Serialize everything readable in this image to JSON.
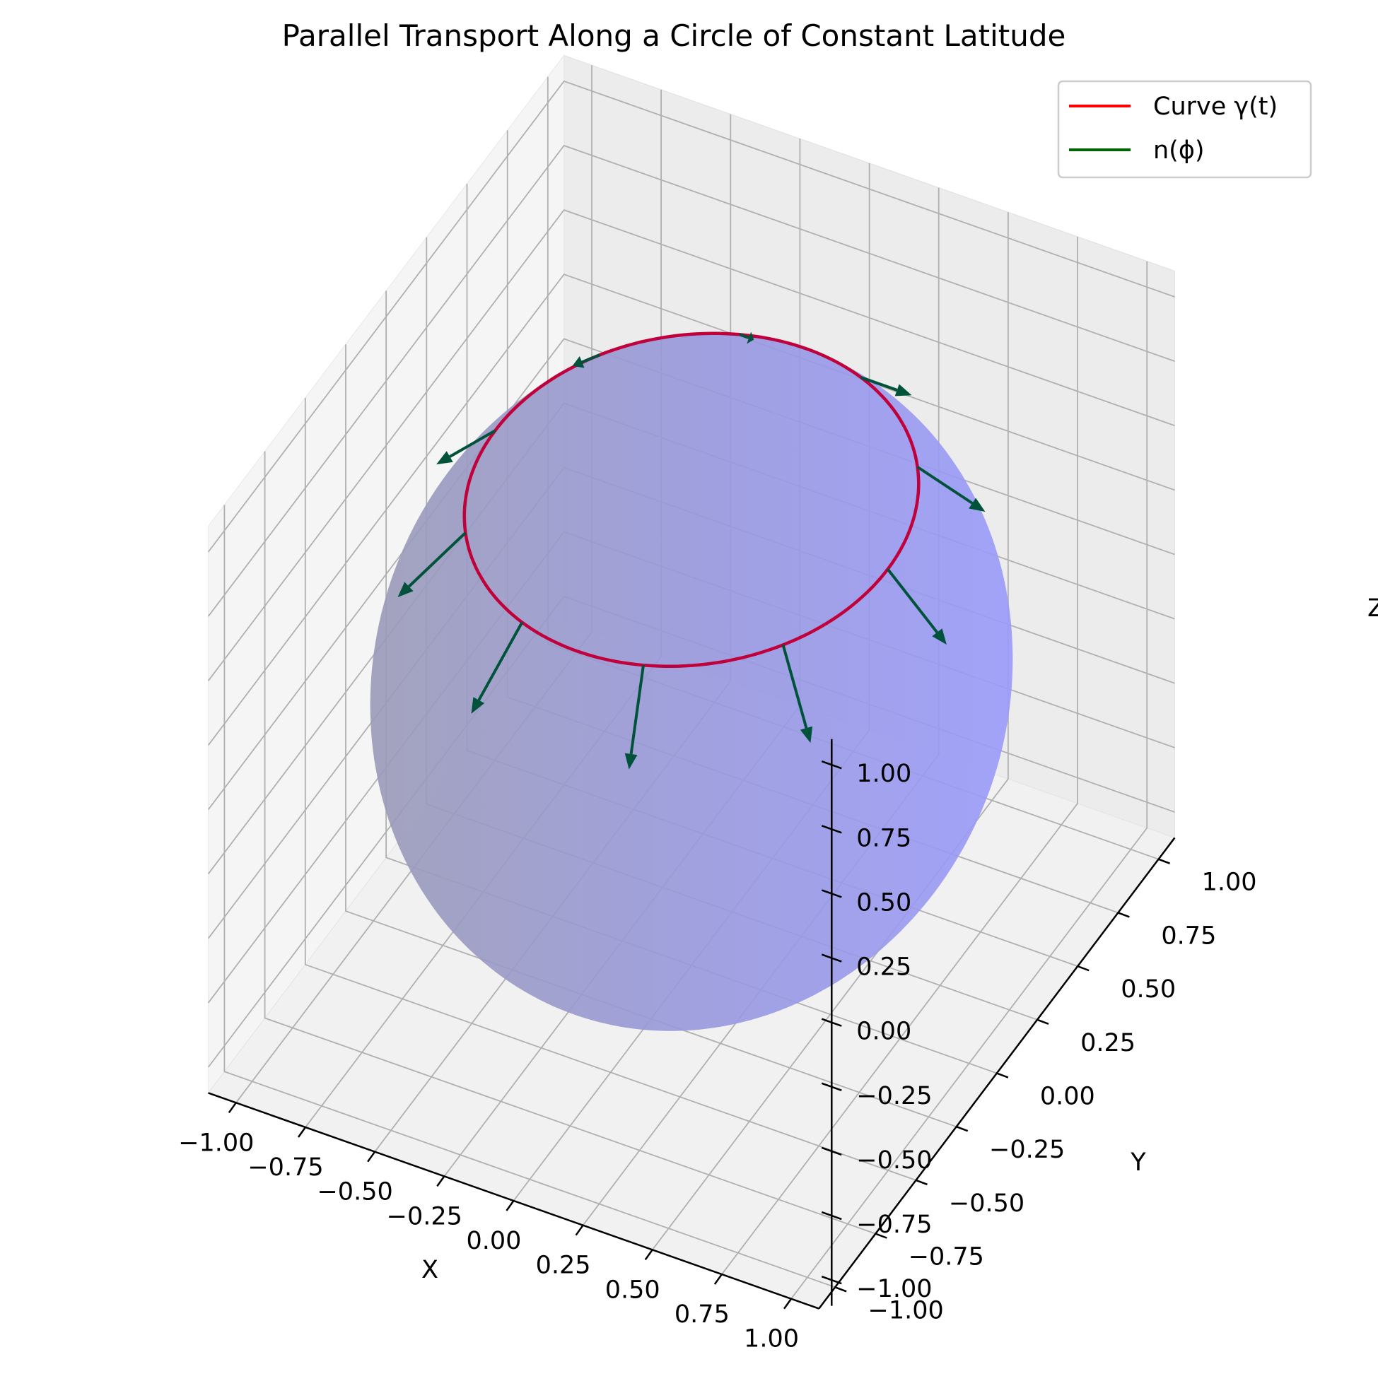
{
  "chart_data": {
    "type": "3d-surface-quiver",
    "title": "Parallel Transport Along a Circle of Constant Latitude",
    "xlabel": "X",
    "ylabel": "Y",
    "zlabel": "Z",
    "xlim": [
      -1.1,
      1.1
    ],
    "ylim": [
      -1.1,
      1.1
    ],
    "zlim": [
      -1.1,
      1.1
    ],
    "xticks": [
      "−1.00",
      "−0.75",
      "−0.50",
      "−0.25",
      "0.00",
      "0.25",
      "0.50",
      "0.75",
      "1.00"
    ],
    "yticks": [
      "−1.00",
      "−0.75",
      "−0.50",
      "−0.25",
      "0.00",
      "0.25",
      "0.50",
      "0.75",
      "1.00"
    ],
    "zticks": [
      "−1.00",
      "−0.75",
      "−0.50",
      "−0.25",
      "0.00",
      "0.25",
      "0.50",
      "0.75",
      "1.00"
    ],
    "grid": true,
    "legend_position": "top-right",
    "view": {
      "elevation_deg": 30,
      "azimuth_deg": -60
    },
    "colors": {
      "sphere": "#8080ff",
      "curve": "#ff0000",
      "arrows": "#006400",
      "pane": "#f2f2f2",
      "grid": "#b0b0b0"
    },
    "sphere": {
      "radius": 1.0,
      "alpha": 0.5
    },
    "series": [
      {
        "name": "Curve γ(t)",
        "kind": "curve",
        "latitude_deg": 45,
        "radius": 1.0
      },
      {
        "name": "n(ϕ)",
        "kind": "quiver",
        "count": 10,
        "arrow_length": 0.3
      }
    ]
  }
}
